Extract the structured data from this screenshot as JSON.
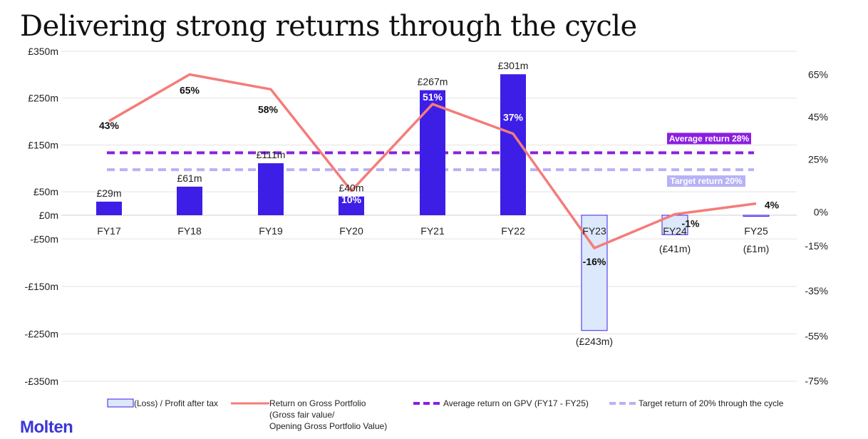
{
  "title": "Delivering strong returns through the cycle",
  "logo": "Molten",
  "colors": {
    "bar_profit": "#3d1ee6",
    "bar_loss_fill": "#dce8fb",
    "bar_loss_stroke": "#3d1ee6",
    "return_line": "#f47c79",
    "average_line": "#8b1fe0",
    "target_line": "#b7b2f5",
    "grid": "#e3e3e3",
    "text": "#222222"
  },
  "chart_data": {
    "type": "bar+line",
    "categories": [
      "FY17",
      "FY18",
      "FY19",
      "FY20",
      "FY21",
      "FY22",
      "FY23",
      "FY24",
      "FY25"
    ],
    "bars": {
      "name": "(Loss) / Profit after tax",
      "values": [
        29,
        61,
        111,
        40,
        267,
        301,
        -243,
        -41,
        -1
      ],
      "labels": [
        "£29m",
        "£61m",
        "£111m",
        "£40m",
        "£267m",
        "£301m",
        "(£243m)",
        "(£41m)",
        "(£1m)"
      ],
      "unit": "£m"
    },
    "line": {
      "name": "Return on Gross Portfolio",
      "values": [
        43,
        65,
        58,
        10,
        51,
        37,
        -16,
        -1,
        4
      ],
      "labels": [
        "43%",
        "65%",
        "58%",
        "10%",
        "51%",
        "37%",
        "-16%",
        "-1%",
        "4%"
      ],
      "unit": "%"
    },
    "reference_lines": [
      {
        "name": "Average return on GPV (FY17 - FY25)",
        "value": 28,
        "label": "Average return 28%",
        "style": "dashed"
      },
      {
        "name": "Target return of 20% through the cycle",
        "value": 20,
        "label": "Target return 20%",
        "style": "dashed"
      }
    ],
    "left_axis": {
      "ylim": [
        -350,
        350
      ],
      "ticks": [
        350,
        250,
        150,
        50,
        0,
        -50,
        -150,
        -250,
        -350
      ],
      "tick_labels": [
        "£350m",
        "£250m",
        "£150m",
        "£50m",
        "£0m",
        "-£50m",
        "-£150m",
        "-£250m",
        "-£350m"
      ]
    },
    "right_axis": {
      "ylim": [
        -75,
        65
      ],
      "ticks": [
        65,
        45,
        25,
        0,
        -15,
        -35,
        -55,
        -75
      ],
      "tick_labels": [
        "65%",
        "45%",
        "25%",
        "0%",
        "-15%",
        "-35%",
        "-55%",
        "-75%"
      ]
    },
    "legend": {
      "position": "bottom",
      "items": [
        {
          "kind": "bar",
          "lines": [
            "(Loss) / Profit after tax"
          ]
        },
        {
          "kind": "line",
          "lines": [
            "Return on Gross Portfolio",
            "(Gross fair value/",
            "Opening Gross Portfolio Value)"
          ]
        },
        {
          "kind": "dash-average",
          "lines": [
            "Average return on GPV (FY17 - FY25)"
          ]
        },
        {
          "kind": "dash-target",
          "lines": [
            "Target return of 20% through the cycle"
          ]
        }
      ]
    },
    "grid": true
  }
}
